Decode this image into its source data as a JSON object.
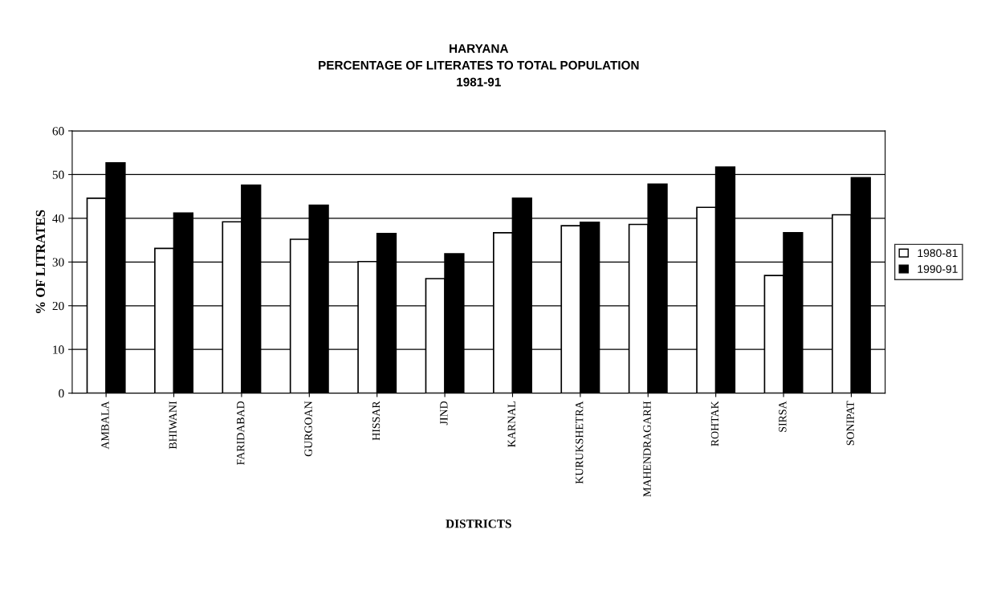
{
  "chart_data": {
    "type": "bar",
    "title": "HARYANA\nPERCENTAGE OF LITERATES TO TOTAL POPULATION\n1981-91",
    "xlabel": "DISTRICTS",
    "ylabel": "% OF LITRATES",
    "categories": [
      "AMBALA",
      "BHIWANI",
      "FARIDABAD",
      "GURGOAN",
      "HISSAR",
      "JIND",
      "KARNAL",
      "KURUKSHETRA",
      "MAHENDRAGARH",
      "ROHTAK",
      "SIRSA",
      "SONIPAT"
    ],
    "series": [
      {
        "name": "1980-81",
        "color": "#ffffff",
        "values": [
          44.6,
          33.1,
          39.2,
          35.2,
          30.1,
          26.2,
          36.7,
          38.3,
          38.6,
          42.5,
          26.9,
          40.8
        ]
      },
      {
        "name": "1990-91",
        "color": "#000000",
        "values": [
          52.7,
          41.2,
          47.6,
          43.0,
          36.5,
          31.9,
          44.6,
          39.1,
          47.8,
          51.7,
          36.7,
          49.3
        ]
      }
    ],
    "ylim": [
      0,
      60
    ],
    "yticks": [
      0,
      10,
      20,
      30,
      40,
      50,
      60
    ],
    "grid": "y",
    "legend": "right"
  }
}
